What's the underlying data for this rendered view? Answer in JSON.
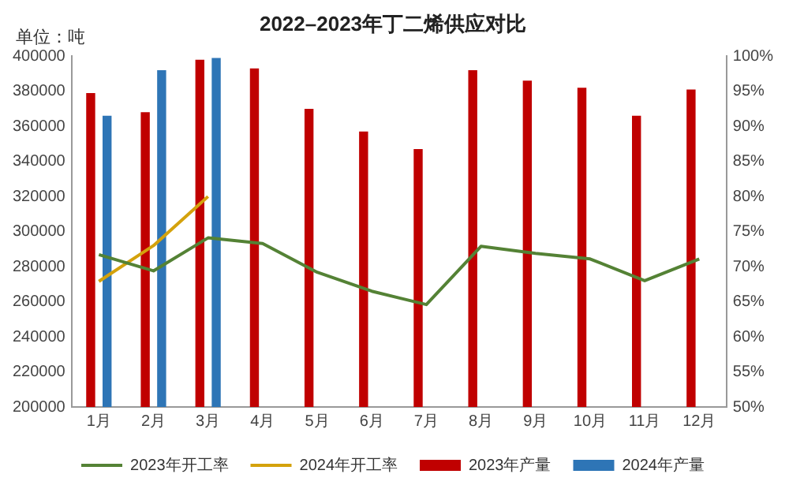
{
  "chart_data": {
    "type": "bar",
    "title": "2022–2023年丁二烯供应对比",
    "annotations": [
      "单位：吨"
    ],
    "categories": [
      "1月",
      "2月",
      "3月",
      "4月",
      "5月",
      "6月",
      "7月",
      "8月",
      "9月",
      "10月",
      "11月",
      "12月"
    ],
    "series": [
      {
        "name": "2023年产量",
        "color": "#c00000",
        "values": [
          379000,
          368000,
          398000,
          393000,
          370000,
          357000,
          347000,
          392000,
          386000,
          382000,
          366000,
          381000
        ]
      },
      {
        "name": "2024年产量",
        "color": "#2e75b6",
        "values": [
          366000,
          392000,
          399000,
          null,
          null,
          null,
          null,
          null,
          null,
          null,
          null,
          null
        ]
      },
      {
        "name": "2023年开工率",
        "type": "line",
        "axis": "y2",
        "color": "#548235",
        "values": [
          71.7,
          69.4,
          74.1,
          73.3,
          69.2,
          66.5,
          64.6,
          72.9,
          71.9,
          71.1,
          68.0,
          71.1
        ]
      },
      {
        "name": "2024年开工率",
        "type": "line",
        "axis": "y2",
        "color": "#d4a20c",
        "values": [
          67.9,
          73.0,
          80.0,
          null,
          null,
          null,
          null,
          null,
          null,
          null,
          null,
          null
        ]
      }
    ],
    "ylim": [
      200000,
      400000
    ],
    "yticks": [
      200000,
      220000,
      240000,
      260000,
      280000,
      300000,
      320000,
      340000,
      360000,
      380000,
      400000
    ],
    "y2lim": [
      50,
      100
    ],
    "y2ticks": [
      {
        "value": 50,
        "label": "50%"
      },
      {
        "value": 55,
        "label": "55%"
      },
      {
        "value": 60,
        "label": "60%"
      },
      {
        "value": 65,
        "label": "65%"
      },
      {
        "value": 70,
        "label": "70%"
      },
      {
        "value": 75,
        "label": "75%"
      },
      {
        "value": 80,
        "label": "80%"
      },
      {
        "value": 85,
        "label": "85%"
      },
      {
        "value": 90,
        "label": "90%"
      },
      {
        "value": 95,
        "label": "95%"
      },
      {
        "value": 100,
        "label": "100%"
      }
    ],
    "grid": false,
    "legend": "bottom",
    "marker": "none"
  }
}
